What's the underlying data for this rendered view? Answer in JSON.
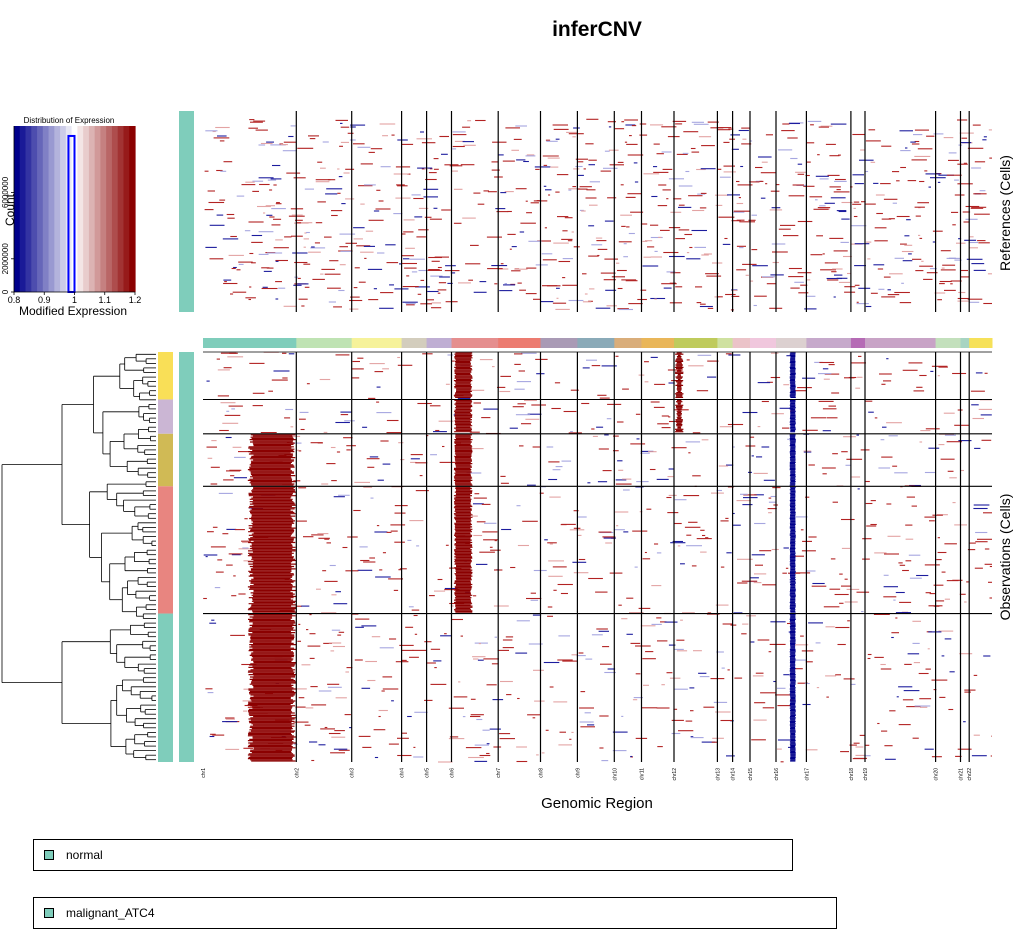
{
  "title": "inferCNV",
  "chart_data": [
    {
      "type": "histogram",
      "title": "Distribution of Expression",
      "xlabel": "Modified Expression",
      "ylabel": "Count",
      "x_ticks": [
        "0.8",
        "0.9",
        "1",
        "1.1",
        "1.2"
      ],
      "y_ticks": [
        "0",
        "2000000",
        "6000000"
      ],
      "xlim": [
        0.8,
        1.2
      ],
      "ylim": [
        0,
        10000000
      ],
      "bins": [
        {
          "x": 0.79,
          "count": 0
        },
        {
          "x": 0.81,
          "count": 0
        },
        {
          "x": 0.83,
          "count": 0
        },
        {
          "x": 0.85,
          "count": 0
        },
        {
          "x": 0.87,
          "count": 0
        },
        {
          "x": 0.89,
          "count": 0
        },
        {
          "x": 0.91,
          "count": 0
        },
        {
          "x": 0.93,
          "count": 0
        },
        {
          "x": 0.95,
          "count": 0
        },
        {
          "x": 0.97,
          "count": 0
        },
        {
          "x": 0.99,
          "count": 9400000
        },
        {
          "x": 1.01,
          "count": 0
        },
        {
          "x": 1.03,
          "count": 0
        },
        {
          "x": 1.05,
          "count": 0
        },
        {
          "x": 1.07,
          "count": 0
        },
        {
          "x": 1.09,
          "count": 0
        },
        {
          "x": 1.11,
          "count": 0
        },
        {
          "x": 1.13,
          "count": 0
        },
        {
          "x": 1.15,
          "count": 0
        },
        {
          "x": 1.17,
          "count": 0
        },
        {
          "x": 1.19,
          "count": 0
        }
      ],
      "colors": {
        "low": "#00008b",
        "mid": "#ffffff",
        "high": "#8b0000",
        "bar_border": "#0000ff"
      }
    },
    {
      "type": "heatmap",
      "xlabel": "Genomic Region",
      "reference_label": "References (Cells)",
      "observation_label": "Observations (Cells)",
      "chromosomes": [
        "chr1",
        "chr2",
        "chr3",
        "chr4",
        "chr5",
        "chr6",
        "chr7",
        "chr8",
        "chr9",
        "chr10",
        "chr11",
        "chr12",
        "chr13",
        "chr14",
        "chr15",
        "chr16",
        "chr17",
        "chr18",
        "chr19",
        "chr20",
        "chr21",
        "chr22"
      ],
      "chromosome_widths": [
        86,
        51,
        46,
        23,
        23,
        43,
        39,
        34,
        34,
        25,
        30,
        40,
        14,
        16,
        24,
        28,
        41,
        13,
        65,
        23,
        8,
        21
      ],
      "chromosome_colors": [
        "#7fcdbb",
        "#bfe3b3",
        "#f6f29a",
        "#d3cdbd",
        "#bfaed3",
        "#e58e8e",
        "#ec7b70",
        "#a99ab5",
        "#8aaab8",
        "#d9ad7a",
        "#e9b659",
        "#bfcb5c",
        "#cfe1a0",
        "#ebc3c8",
        "#f0c7dd",
        "#dcd0d0",
        "#c6a9cb",
        "#b56bb5",
        "#c8a3c6",
        "#c3e0bc",
        "#a7d4c2",
        "#f6e159"
      ],
      "observation_groups": [
        {
          "rows": 47,
          "color": "#f9df57"
        },
        {
          "rows": 34,
          "color": "#cbb6d4"
        },
        {
          "rows": 52,
          "color": "#d0ba55"
        },
        {
          "rows": 126,
          "color": "#e88580"
        },
        {
          "rows": 147,
          "color": "#7fcdbb"
        }
      ],
      "reference_annotation_color": "#7fcdbb",
      "observation_annotation_color": "#7fcdbb",
      "cnv_events": [
        {
          "chromosome": "chr1",
          "type": "gain",
          "groups": [
            3,
            4,
            5
          ],
          "level": "strong"
        },
        {
          "chromosome": "chr6",
          "type": "gain",
          "groups": [
            1,
            2,
            3,
            4
          ],
          "level": "strong"
        },
        {
          "chromosome": "chr12",
          "type": "gain",
          "groups": [
            1,
            2
          ],
          "level": "moderate"
        },
        {
          "chromosome": "chr16",
          "type": "loss",
          "groups": [
            1,
            2,
            3,
            4,
            5
          ],
          "level": "strong"
        }
      ]
    }
  ],
  "legend": [
    {
      "label": "normal",
      "color": "#7fcdbb"
    },
    {
      "label": "malignant_ATC4",
      "color": "#7fcdbb"
    }
  ]
}
